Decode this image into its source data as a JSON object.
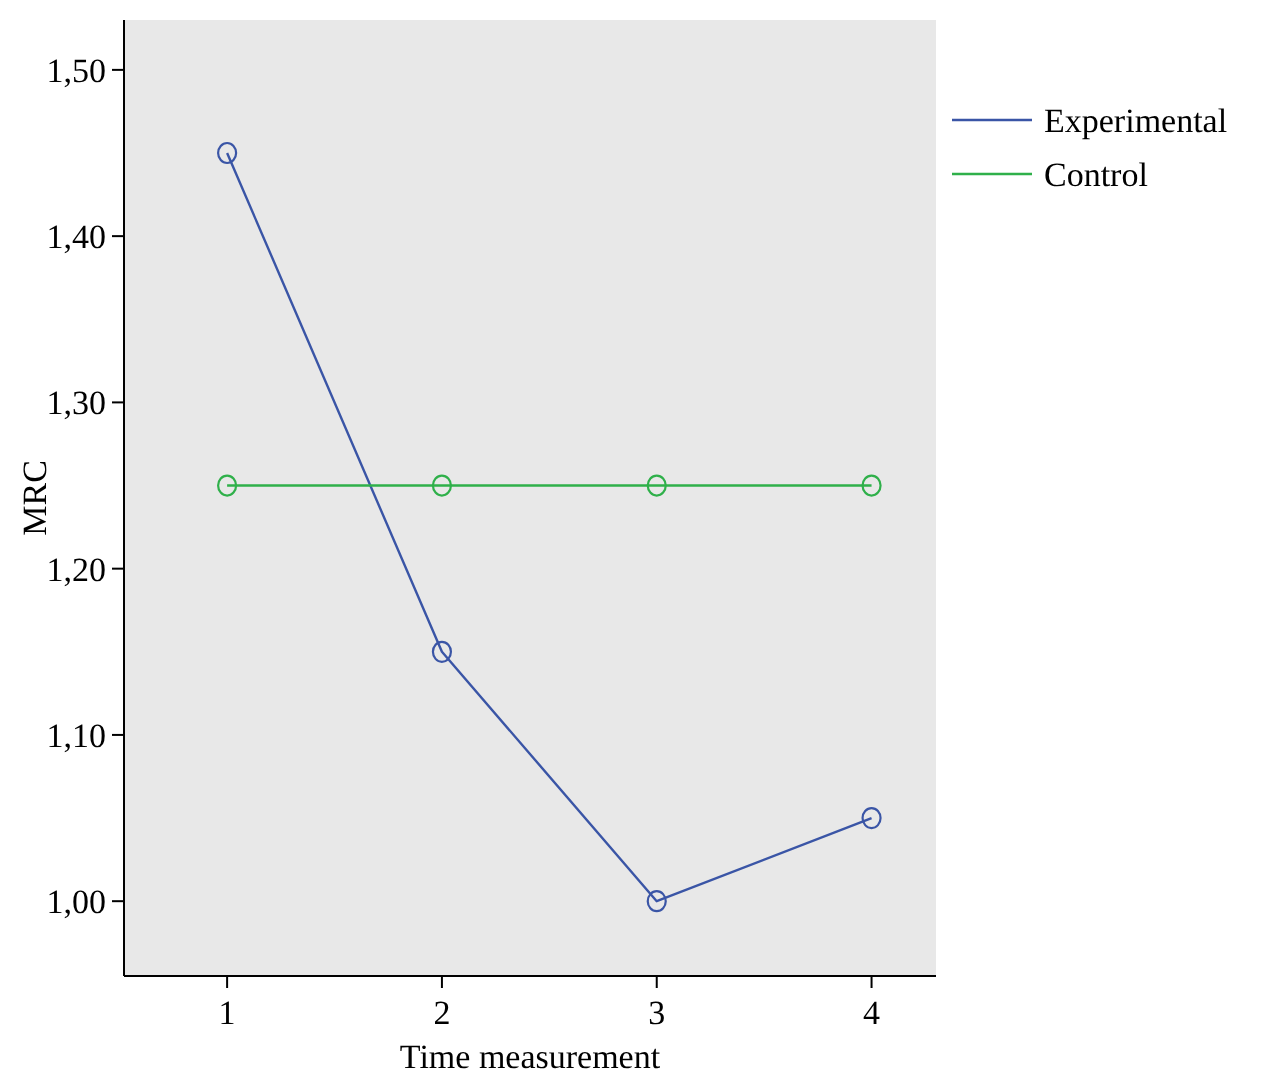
{
  "chart_data": {
    "type": "line",
    "xlabel": "Time measurement",
    "ylabel": "MRC",
    "x": [
      1,
      2,
      3,
      4
    ],
    "series": [
      {
        "name": "Experimental",
        "color": "#3a55a6",
        "values": [
          1.45,
          1.15,
          1.0,
          1.05
        ]
      },
      {
        "name": "Control",
        "color": "#2fb04a",
        "values": [
          1.25,
          1.25,
          1.25,
          1.25
        ]
      }
    ],
    "xlim": [
      0.52,
      4.3
    ],
    "xticks": [
      1,
      2,
      3,
      4
    ],
    "ylim": [
      0.955,
      1.53
    ],
    "yticks": [
      {
        "value": 1.0,
        "label": "1,00"
      },
      {
        "value": 1.1,
        "label": "1,10"
      },
      {
        "value": 1.2,
        "label": "1,20"
      },
      {
        "value": 1.3,
        "label": "1,30"
      },
      {
        "value": 1.4,
        "label": "1,40"
      },
      {
        "value": 1.5,
        "label": "1,50"
      }
    ],
    "grid": false,
    "legend": "top right",
    "marker": "circle",
    "line_style": "solid"
  }
}
